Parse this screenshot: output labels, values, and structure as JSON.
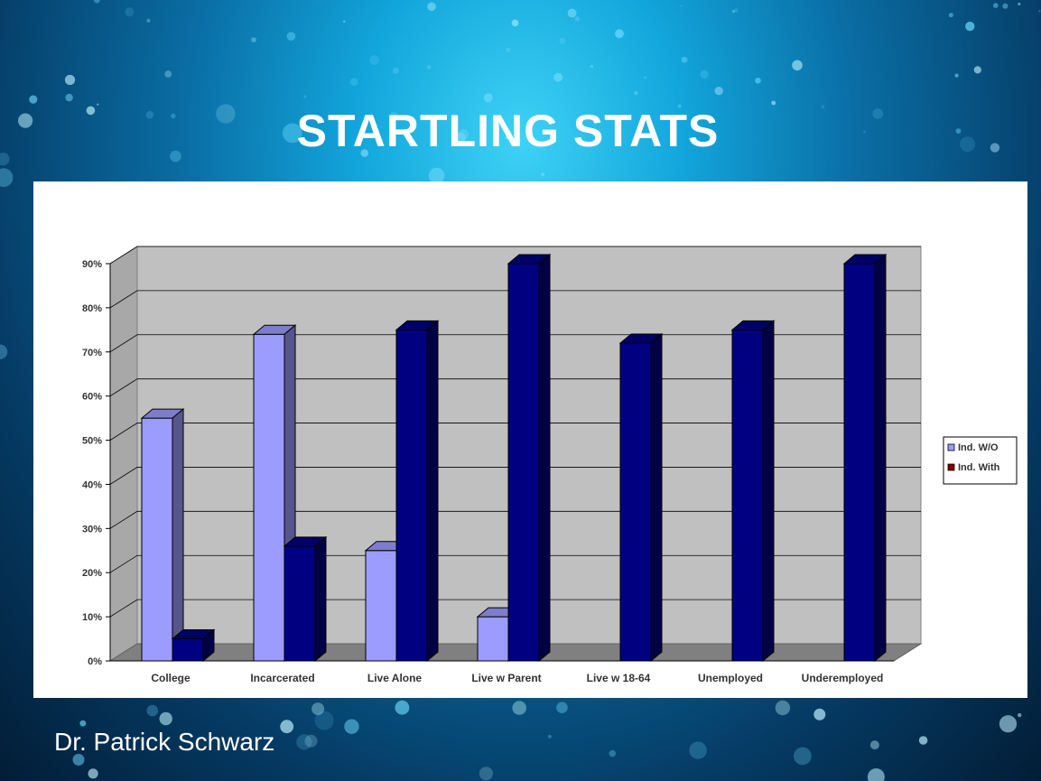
{
  "slide": {
    "title": "STARTLING STATS",
    "footer": "Dr. Patrick Schwarz"
  },
  "colors": {
    "series1": "#9c9cff",
    "series2": "#000080",
    "wall": "#c0c0c0",
    "floor": "#808080"
  },
  "chart_data": {
    "type": "bar",
    "categories": [
      "College",
      "Incarcerated",
      "Live Alone",
      "Live w Parent",
      "Live w 18-64",
      "Unemployed",
      "Underemployed"
    ],
    "series": [
      {
        "name": "Ind. W/O",
        "values": [
          55,
          74,
          25,
          10,
          0,
          0,
          0
        ]
      },
      {
        "name": "Ind. With",
        "values": [
          5,
          26,
          75,
          90,
          72,
          75,
          90
        ]
      }
    ],
    "yticks": [
      "0%",
      "10%",
      "20%",
      "30%",
      "40%",
      "50%",
      "60%",
      "70%",
      "80%",
      "90%"
    ],
    "ylim": [
      0,
      90
    ],
    "grid": true,
    "legend_position": "right",
    "style": "3d-clustered"
  }
}
